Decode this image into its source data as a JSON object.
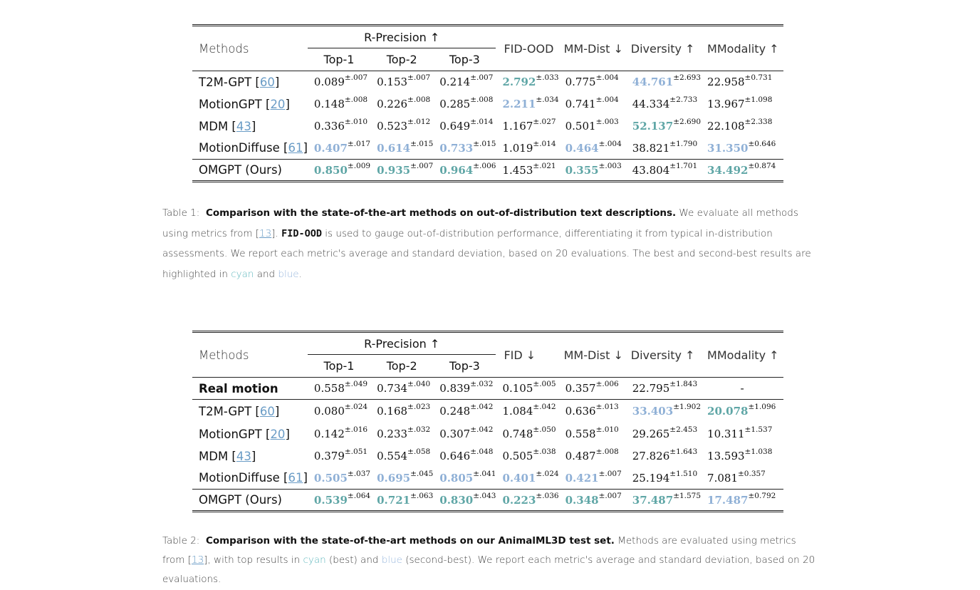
{
  "table1": {
    "headers": {
      "methods": "Methods",
      "r_precision": "R-Precision ↑",
      "top1": "Top-1",
      "top2": "Top-2",
      "top3": "Top-3",
      "fid": "FID-OOD",
      "mm_dist": "MM-Dist ↓",
      "diversity": "Diversity ↑",
      "mmodality": "MModality ↑"
    },
    "rows": [
      {
        "name": "T2M-GPT [",
        "ref": "60",
        "close": "]",
        "cells": [
          {
            "v": "0.089",
            "s": "±.007"
          },
          {
            "v": "0.153",
            "s": "±.007"
          },
          {
            "v": "0.214",
            "s": "±.007"
          },
          {
            "v": "2.792",
            "s": "±.033",
            "hl": "cyan"
          },
          {
            "v": "0.775",
            "s": "±.004"
          },
          {
            "v": "44.761",
            "s": "±2.693",
            "hl": "blue"
          },
          {
            "v": "22.958",
            "s": "±0.731"
          }
        ]
      },
      {
        "name": "MotionGPT [",
        "ref": "20",
        "close": "]",
        "cells": [
          {
            "v": "0.148",
            "s": "±.008"
          },
          {
            "v": "0.226",
            "s": "±.008"
          },
          {
            "v": "0.285",
            "s": "±.008"
          },
          {
            "v": "2.211",
            "s": "±.034",
            "hl": "blue"
          },
          {
            "v": "0.741",
            "s": "±.004"
          },
          {
            "v": "44.334",
            "s": "±2.733"
          },
          {
            "v": "13.967",
            "s": "±1.098"
          }
        ]
      },
      {
        "name": "MDM [",
        "ref": "43",
        "close": "]",
        "cells": [
          {
            "v": "0.336",
            "s": "±.010"
          },
          {
            "v": "0.523",
            "s": "±.012"
          },
          {
            "v": "0.649",
            "s": "±.014"
          },
          {
            "v": "1.167",
            "s": "±.027"
          },
          {
            "v": "0.501",
            "s": "±.003"
          },
          {
            "v": "52.137",
            "s": "±2.690",
            "hl": "cyan"
          },
          {
            "v": "22.108",
            "s": "±2.338"
          }
        ]
      },
      {
        "name": "MotionDiffuse [",
        "ref": "61",
        "close": "]",
        "cells": [
          {
            "v": "0.407",
            "s": "±.017",
            "hl": "blue"
          },
          {
            "v": "0.614",
            "s": "±.015",
            "hl": "blue"
          },
          {
            "v": "0.733",
            "s": "±.015",
            "hl": "blue"
          },
          {
            "v": "1.019",
            "s": "±.014"
          },
          {
            "v": "0.464",
            "s": "±.004",
            "hl": "blue"
          },
          {
            "v": "38.821",
            "s": "±1.790"
          },
          {
            "v": "31.350",
            "s": "±0.646",
            "hl": "blue"
          }
        ]
      },
      {
        "name": "OMGPT (Ours)",
        "ref": "",
        "close": "",
        "cells": [
          {
            "v": "0.850",
            "s": "±.009",
            "hl": "cyan"
          },
          {
            "v": "0.935",
            "s": "±.007",
            "hl": "cyan"
          },
          {
            "v": "0.964",
            "s": "±.006",
            "hl": "cyan"
          },
          {
            "v": "1.453",
            "s": "±.021"
          },
          {
            "v": "0.355",
            "s": "±.003",
            "hl": "cyan"
          },
          {
            "v": "43.804",
            "s": "±1.701"
          },
          {
            "v": "34.492",
            "s": "±0.874",
            "hl": "cyan"
          }
        ]
      }
    ]
  },
  "caption1": {
    "label": "Table 1:",
    "lead": "Comparison with the state-of-the-art methods on out-of-distribution text descriptions.",
    "t1": " We evaluate all methods using metrics from [",
    "ref": "13",
    "t2": "]. ",
    "mono": "FID-OOD",
    "t3": " is used to gauge out-of-distribution performance, differentiating it from typical in-distribution assessments. We report each metric's average and standard deviation, based on 20 evaluations. The best and second-best results are highlighted in ",
    "cyan": "cyan",
    "and": " and ",
    "blue": "blue",
    "end": "."
  },
  "table2": {
    "headers": {
      "methods": "Methods",
      "r_precision": "R-Precision ↑",
      "top1": "Top-1",
      "top2": "Top-2",
      "top3": "Top-3",
      "fid": "FID ↓",
      "mm_dist": "MM-Dist ↓",
      "diversity": "Diversity ↑",
      "mmodality": "MModality ↑"
    },
    "real": {
      "name": "Real motion",
      "cells": [
        {
          "v": "0.558",
          "s": "±.049"
        },
        {
          "v": "0.734",
          "s": "±.040"
        },
        {
          "v": "0.839",
          "s": "±.032"
        },
        {
          "v": "0.105",
          "s": "±.005"
        },
        {
          "v": "0.357",
          "s": "±.006"
        },
        {
          "v": "22.795",
          "s": "±1.843"
        }
      ],
      "mmodality": "-"
    },
    "rows": [
      {
        "name": "T2M-GPT [",
        "ref": "60",
        "close": "]",
        "cells": [
          {
            "v": "0.080",
            "s": "±.024"
          },
          {
            "v": "0.168",
            "s": "±.023"
          },
          {
            "v": "0.248",
            "s": "±.042"
          },
          {
            "v": "1.084",
            "s": "±.042"
          },
          {
            "v": "0.636",
            "s": "±.013"
          },
          {
            "v": "33.403",
            "s": "±1.902",
            "hl": "blue"
          },
          {
            "v": "20.078",
            "s": "±1.096",
            "hl": "cyan"
          }
        ]
      },
      {
        "name": "MotionGPT [",
        "ref": "20",
        "close": "]",
        "cells": [
          {
            "v": "0.142",
            "s": "±.016"
          },
          {
            "v": "0.233",
            "s": "±.032"
          },
          {
            "v": "0.307",
            "s": "±.042"
          },
          {
            "v": "0.748",
            "s": "±.050"
          },
          {
            "v": "0.558",
            "s": "±.010"
          },
          {
            "v": "29.265",
            "s": "±2.453"
          },
          {
            "v": "10.311",
            "s": "±1.537"
          }
        ]
      },
      {
        "name": "MDM [",
        "ref": "43",
        "close": "]",
        "cells": [
          {
            "v": "0.379",
            "s": "±.051"
          },
          {
            "v": "0.554",
            "s": "±.058"
          },
          {
            "v": "0.646",
            "s": "±.048"
          },
          {
            "v": "0.505",
            "s": "±.038"
          },
          {
            "v": "0.487",
            "s": "±.008"
          },
          {
            "v": "27.826",
            "s": "±1.643"
          },
          {
            "v": "13.593",
            "s": "±1.038"
          }
        ]
      },
      {
        "name": "MotionDiffuse [",
        "ref": "61",
        "close": "]",
        "cells": [
          {
            "v": "0.505",
            "s": "±.037",
            "hl": "blue"
          },
          {
            "v": "0.695",
            "s": "±.045",
            "hl": "blue"
          },
          {
            "v": "0.805",
            "s": "±.041",
            "hl": "blue"
          },
          {
            "v": "0.401",
            "s": "±.024",
            "hl": "blue"
          },
          {
            "v": "0.421",
            "s": "±.007",
            "hl": "blue"
          },
          {
            "v": "25.194",
            "s": "±1.510"
          },
          {
            "v": "7.081",
            "s": "±0.357"
          }
        ]
      },
      {
        "name": "OMGPT (Ours)",
        "ref": "",
        "close": "",
        "cells": [
          {
            "v": "0.539",
            "s": "±.064",
            "hl": "cyan"
          },
          {
            "v": "0.721",
            "s": "±.063",
            "hl": "cyan"
          },
          {
            "v": "0.830",
            "s": "±.043",
            "hl": "cyan"
          },
          {
            "v": "0.223",
            "s": "±.036",
            "hl": "cyan"
          },
          {
            "v": "0.348",
            "s": "±.007",
            "hl": "cyan"
          },
          {
            "v": "37.487",
            "s": "±1.575",
            "hl": "cyan"
          },
          {
            "v": "17.487",
            "s": "±0.792",
            "hl": "blue"
          }
        ]
      }
    ]
  },
  "caption2": {
    "label": "Table 2:",
    "lead": "Comparison with the state-of-the-art methods on our AnimalML3D test set.",
    "t1": " Methods are evaluated using metrics from [",
    "ref": "13",
    "t2": "], with top results in ",
    "cyan": "cyan",
    "t3": " (best) and ",
    "blue": "blue",
    "t4": " (second-best). We report each metric's average and standard deviation, based on 20 evaluations."
  },
  "colors": {
    "cyan": "#5fa6a6",
    "blue": "#8fb0d6",
    "link": "#6a9cc6"
  }
}
